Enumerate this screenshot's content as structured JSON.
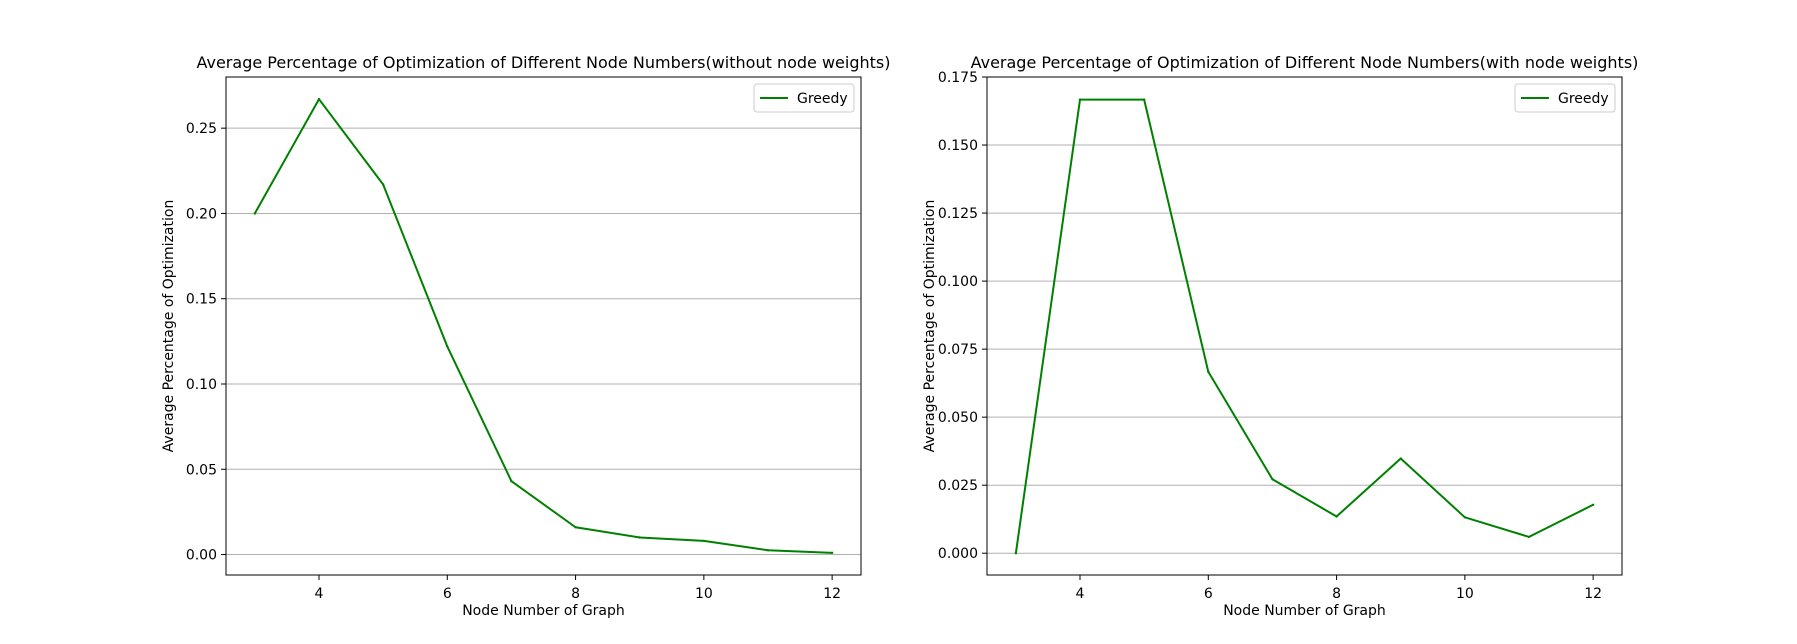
{
  "chart_data": [
    {
      "type": "line",
      "title": "Average Percentage of Optimization of Different Node Numbers(without node weights)",
      "xlabel": "Node Number of Graph",
      "ylabel": "Average Percentage of Optimization",
      "xlim": [
        2.55,
        12.45
      ],
      "ylim": [
        -0.012,
        0.28
      ],
      "xticks": [
        4,
        6,
        8,
        10,
        12
      ],
      "yticks": [
        0.0,
        0.05,
        0.1,
        0.15,
        0.2,
        0.25
      ],
      "ytick_labels": [
        "0.00",
        "0.05",
        "0.10",
        "0.15",
        "0.20",
        "0.25"
      ],
      "grid": "horizontal",
      "legend": "top-right",
      "x": [
        3,
        4,
        5,
        6,
        7,
        8,
        9,
        10,
        11,
        12
      ],
      "series": [
        {
          "name": "Greedy",
          "color": "#008000",
          "values": [
            0.2,
            0.267,
            0.217,
            0.122,
            0.043,
            0.016,
            0.01,
            0.008,
            0.0025,
            0.001
          ]
        }
      ]
    },
    {
      "type": "line",
      "title": "Average Percentage of Optimization of Different Node Numbers(with node weights)",
      "xlabel": "Node Number of Graph",
      "ylabel": "Average Percentage of Optimization",
      "xlim": [
        2.55,
        12.45
      ],
      "ylim": [
        -0.008,
        0.175
      ],
      "xticks": [
        4,
        6,
        8,
        10,
        12
      ],
      "yticks": [
        0.0,
        0.025,
        0.05,
        0.075,
        0.1,
        0.125,
        0.15,
        0.175
      ],
      "ytick_labels": [
        "0.000",
        "0.025",
        "0.050",
        "0.075",
        "0.100",
        "0.125",
        "0.150",
        "0.175"
      ],
      "grid": "horizontal",
      "legend": "top-right",
      "x": [
        3,
        4,
        5,
        6,
        7,
        8,
        9,
        10,
        11,
        12
      ],
      "series": [
        {
          "name": "Greedy",
          "color": "#008000",
          "values": [
            0.0,
            0.1667,
            0.1667,
            0.0667,
            0.0272,
            0.0135,
            0.0348,
            0.0132,
            0.006,
            0.0178
          ]
        }
      ]
    }
  ]
}
